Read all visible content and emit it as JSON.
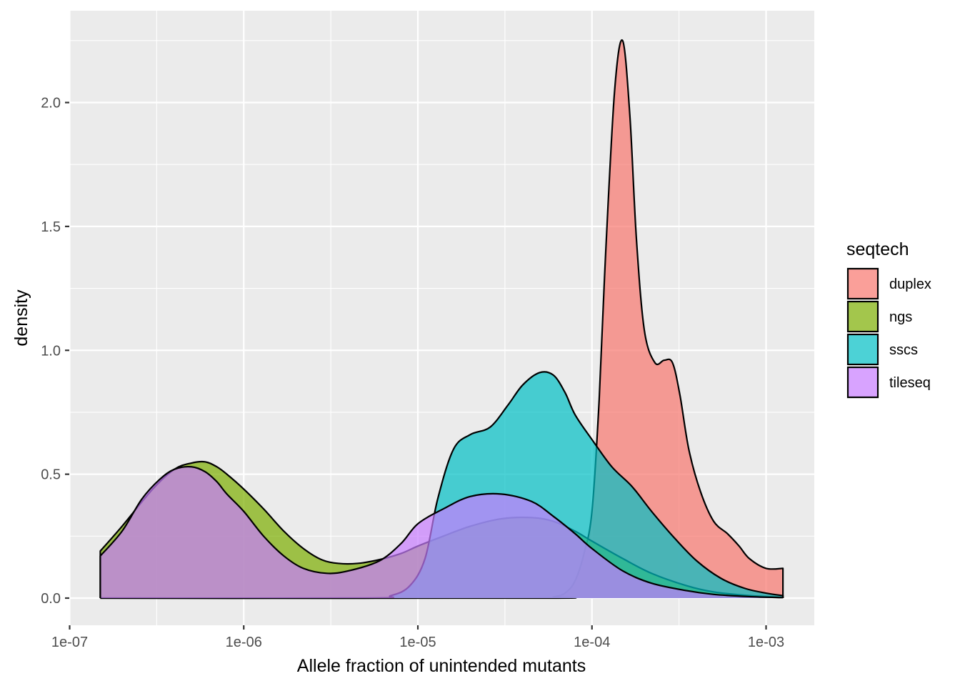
{
  "chart_data": {
    "type": "area",
    "subtype": "density",
    "title": "",
    "xlabel": "Allele fraction of unintended mutants",
    "ylabel": "density",
    "x_scale": "log10",
    "xlim": [
      1.5e-07,
      0.00125
    ],
    "ylim": [
      0,
      2.25
    ],
    "x_ticks": [
      1e-07,
      1e-06,
      1e-05,
      0.0001,
      0.001
    ],
    "x_tick_labels": [
      "1e-07",
      "1e-06",
      "1e-05",
      "1e-04",
      "1e-03"
    ],
    "y_ticks": [
      0,
      0.5,
      1,
      1.5,
      2
    ],
    "y_tick_labels": [
      "0.0",
      "0.5",
      "1.0",
      "1.5",
      "2.0"
    ],
    "grid": true,
    "legend": {
      "title": "seqtech",
      "position": "right"
    },
    "series": [
      {
        "name": "duplex",
        "color": "#F8766D",
        "x": [
          1.5e-07,
          5e-05,
          6e-05,
          7e-05,
          8e-05,
          9e-05,
          0.0001,
          0.00011,
          0.00012,
          0.000135,
          0.00015,
          0.000165,
          0.00018,
          0.0002,
          0.00023,
          0.00026,
          0.00029,
          0.00032,
          0.00036,
          0.00042,
          0.0005,
          0.0006,
          0.0007,
          0.0008,
          0.001,
          0.00125
        ],
        "y": [
          0,
          0,
          0.005,
          0.02,
          0.07,
          0.18,
          0.35,
          0.8,
          1.4,
          2.05,
          2.25,
          1.95,
          1.45,
          1.08,
          0.95,
          0.96,
          0.95,
          0.82,
          0.6,
          0.43,
          0.31,
          0.26,
          0.21,
          0.16,
          0.12,
          0.12
        ]
      },
      {
        "name": "ngs",
        "color": "#7CAE00",
        "x": [
          1.5e-07,
          2e-07,
          3e-07,
          4e-07,
          5e-07,
          6e-07,
          7e-07,
          8e-07,
          1e-06,
          1.3e-06,
          1.7e-06,
          2.2e-06,
          2.8e-06,
          3.5e-06,
          4.5e-06,
          6e-06,
          8e-06,
          1e-05,
          1.4e-05,
          2e-05,
          3e-05,
          4.5e-05,
          6e-05,
          8e-05,
          0.0001,
          0.00015,
          0.00022,
          0.00035,
          0.0005,
          0.0008,
          0.00125
        ],
        "y": [
          0.19,
          0.29,
          0.44,
          0.52,
          0.545,
          0.55,
          0.53,
          0.5,
          0.44,
          0.36,
          0.27,
          0.2,
          0.155,
          0.14,
          0.14,
          0.155,
          0.18,
          0.21,
          0.25,
          0.29,
          0.32,
          0.325,
          0.31,
          0.27,
          0.23,
          0.16,
          0.1,
          0.05,
          0.025,
          0.01,
          0.003
        ]
      },
      {
        "name": "sscs",
        "color": "#00BFC4",
        "x": [
          1.5e-07,
          5e-06,
          7e-06,
          9e-06,
          1.1e-05,
          1.3e-05,
          1.6e-05,
          2e-05,
          2.6e-05,
          3.3e-05,
          4e-05,
          5e-05,
          6e-05,
          7e-05,
          8e-05,
          0.0001,
          0.00013,
          0.00017,
          0.00022,
          0.0003,
          0.0004,
          0.00055,
          0.00075,
          0.001,
          0.00125
        ],
        "y": [
          0,
          0,
          0.01,
          0.05,
          0.16,
          0.4,
          0.6,
          0.66,
          0.69,
          0.78,
          0.86,
          0.91,
          0.9,
          0.83,
          0.74,
          0.64,
          0.53,
          0.45,
          0.35,
          0.24,
          0.15,
          0.08,
          0.04,
          0.02,
          0.01
        ]
      },
      {
        "name": "tileseq",
        "color": "#C77CFF",
        "x": [
          1.5e-07,
          2e-07,
          2.6e-07,
          3.3e-07,
          4e-07,
          5e-07,
          6e-07,
          7e-07,
          8e-07,
          1e-06,
          1.3e-06,
          1.7e-06,
          2.2e-06,
          3e-06,
          4e-06,
          6e-06,
          8e-06,
          1e-05,
          1.4e-05,
          2e-05,
          3e-05,
          4.5e-05,
          6e-05,
          8e-05,
          0.0001,
          0.00015,
          0.00022,
          0.00035,
          0.0005,
          0.0008,
          0.00125
        ],
        "y": [
          0.17,
          0.27,
          0.4,
          0.48,
          0.52,
          0.53,
          0.51,
          0.47,
          0.42,
          0.35,
          0.25,
          0.17,
          0.12,
          0.1,
          0.11,
          0.15,
          0.22,
          0.3,
          0.36,
          0.41,
          0.42,
          0.39,
          0.33,
          0.26,
          0.2,
          0.11,
          0.06,
          0.03,
          0.015,
          0.006,
          0.002
        ]
      }
    ]
  }
}
